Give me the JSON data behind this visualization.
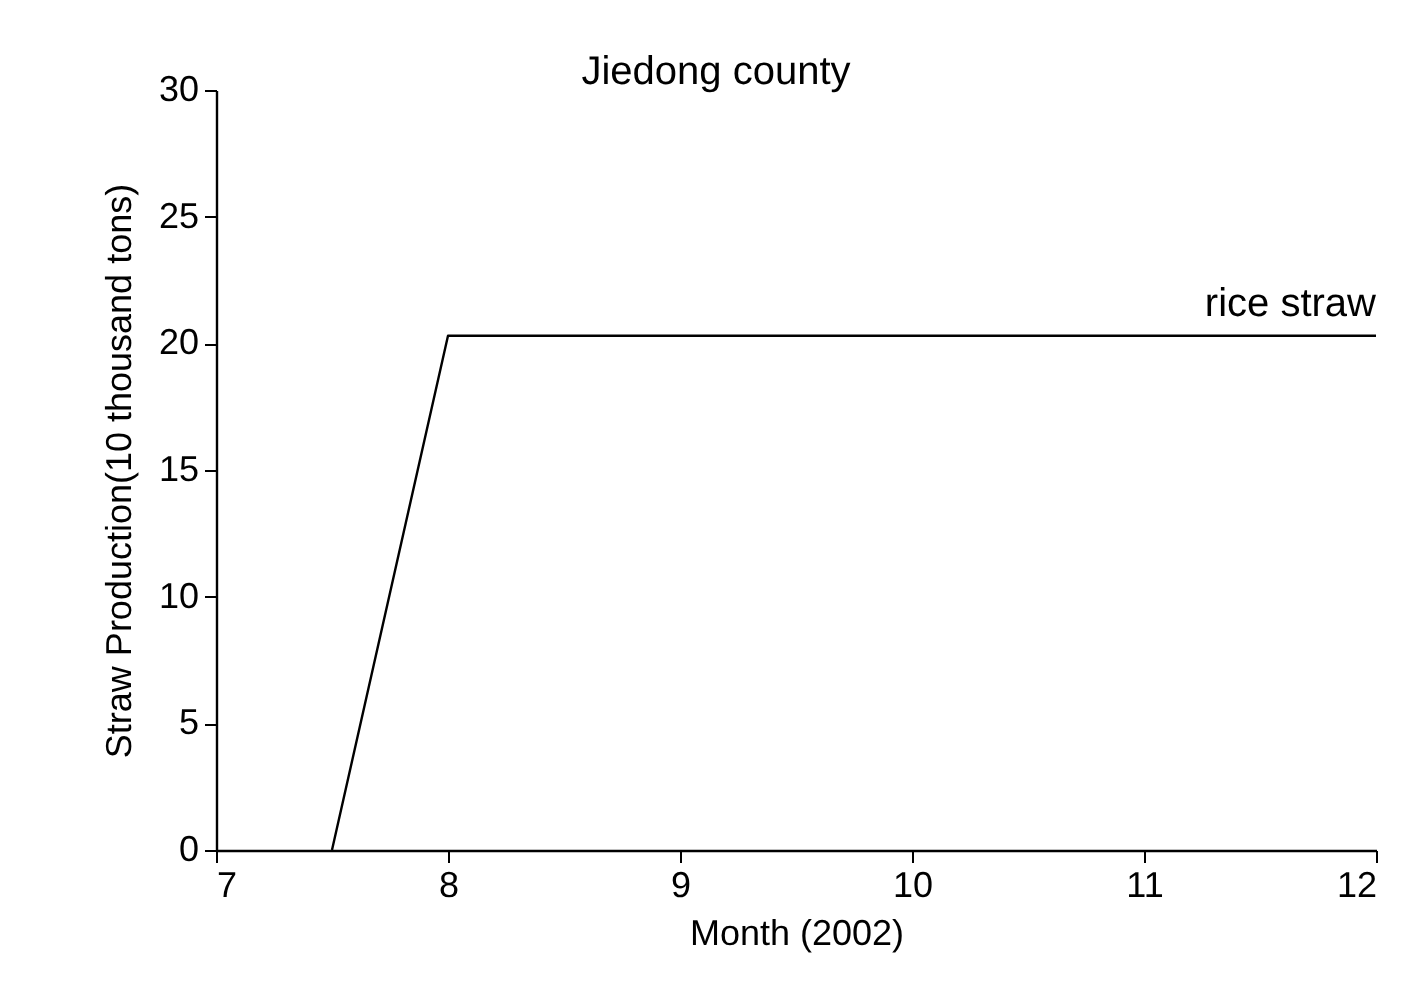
{
  "chart_data": {
    "type": "line",
    "title": "Jiedong county",
    "xlabel": "Month (2002)",
    "ylabel": "Straw Production(10 thousand tons)",
    "x": [
      7.5,
      8,
      12
    ],
    "series": [
      {
        "name": "rice straw",
        "color": "#000000",
        "values": [
          0,
          20.3,
          20.3
        ]
      }
    ],
    "xlim": [
      7,
      12
    ],
    "xticks": [
      7,
      8,
      9,
      10,
      11,
      12
    ],
    "ylim": [
      0,
      30
    ],
    "yticks": [
      0,
      5,
      10,
      15,
      20,
      25,
      30
    ],
    "grid": false,
    "legend": false,
    "marker": "none",
    "line_style": "solid"
  }
}
